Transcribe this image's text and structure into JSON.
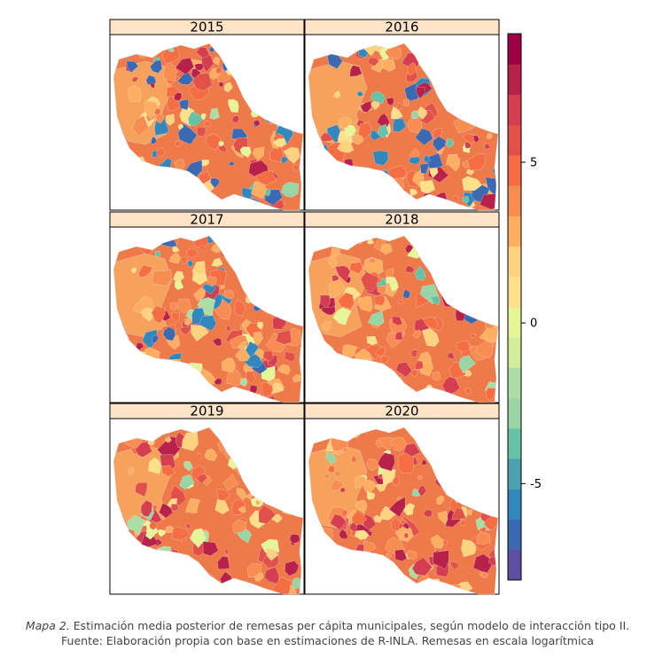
{
  "chart_data": {
    "type": "heatmap",
    "subtype": "choropleth-small-multiples",
    "panels": [
      {
        "label": "2015",
        "dominant_range": [
          -6,
          8
        ],
        "blue_share": "high"
      },
      {
        "label": "2016",
        "dominant_range": [
          -6,
          8
        ],
        "blue_share": "high"
      },
      {
        "label": "2017",
        "dominant_range": [
          -6,
          8
        ],
        "blue_share": "medium"
      },
      {
        "label": "2018",
        "dominant_range": [
          -5,
          8
        ],
        "blue_share": "low"
      },
      {
        "label": "2019",
        "dominant_range": [
          -1,
          8
        ],
        "blue_share": "none"
      },
      {
        "label": "2020",
        "dominant_range": [
          -1,
          8
        ],
        "blue_share": "none"
      }
    ],
    "colorbar": {
      "ticks": [
        5,
        0,
        -5
      ],
      "tick_labels": [
        "5",
        "0",
        "-5"
      ],
      "range": [
        -8,
        9
      ],
      "palette": [
        "#5E4FA2",
        "#3B6AB3",
        "#3288BD",
        "#4BA0B1",
        "#66C2A5",
        "#99D5A4",
        "#ABDDA4",
        "#D2EC9B",
        "#E6F598",
        "#FEE08B",
        "#FDD380",
        "#FDAE61",
        "#F88D52",
        "#F46D43",
        "#E2504A",
        "#D53E4F",
        "#B8214A",
        "#9E0142"
      ]
    },
    "legend_position": "right",
    "grid": false
  },
  "caption": {
    "lead": "Mapa 2.",
    "line1": " Estimación media posterior de remesas per cápita municipales, según modelo de interacción tipo II.",
    "line2": "Fuente: Elaboración propia con base en estimaciones de R-INLA. Remesas en escala logarítmica"
  }
}
